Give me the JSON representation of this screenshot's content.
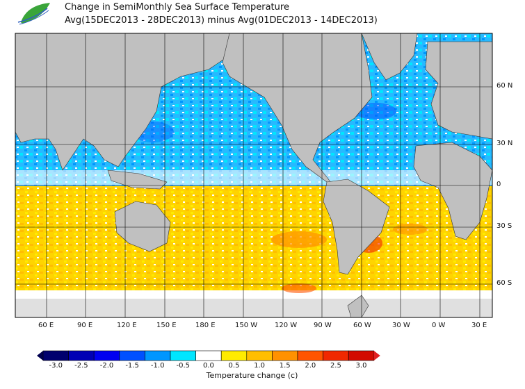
{
  "header": {
    "title": "Change in SemiMonthly Sea Surface Temperature",
    "subtitle": "Avg(15DEC2013 - 28DEC2013) minus Avg(01DEC2013 - 14DEC2013)",
    "logo_icon": "leaf-logo-icon"
  },
  "map": {
    "lat_labels": [
      "60 N",
      "30 N",
      "0",
      "30 S",
      "60 S"
    ],
    "lon_labels": [
      "60 E",
      "90 E",
      "120 E",
      "150 E",
      "180 E",
      "150 W",
      "120 W",
      "90 W",
      "60 W",
      "30 W",
      "0 W",
      "30 E"
    ],
    "colors": {
      "land": "#c0c0c0",
      "ice": "#e0e0e0",
      "ocean_north": "#22b8ff",
      "ocean_south": "#ffd000"
    }
  },
  "colorbar": {
    "title": "Temperature change  (c)",
    "ticks": [
      "-3.0",
      "-2.5",
      "-2.0",
      "-1.5",
      "-1.0",
      "-0.5",
      "0.0",
      "0.5",
      "1.0",
      "1.5",
      "2.0",
      "2.5",
      "3.0"
    ],
    "colors": [
      "#00006e",
      "#0000b4",
      "#0000f0",
      "#0050ff",
      "#0096ff",
      "#00e6ff",
      "#ffffff",
      "#ffeb00",
      "#ffbe00",
      "#ff9100",
      "#ff5500",
      "#f02800",
      "#d20a00"
    ],
    "under_color": "#000050",
    "over_color": "#e02020"
  }
}
